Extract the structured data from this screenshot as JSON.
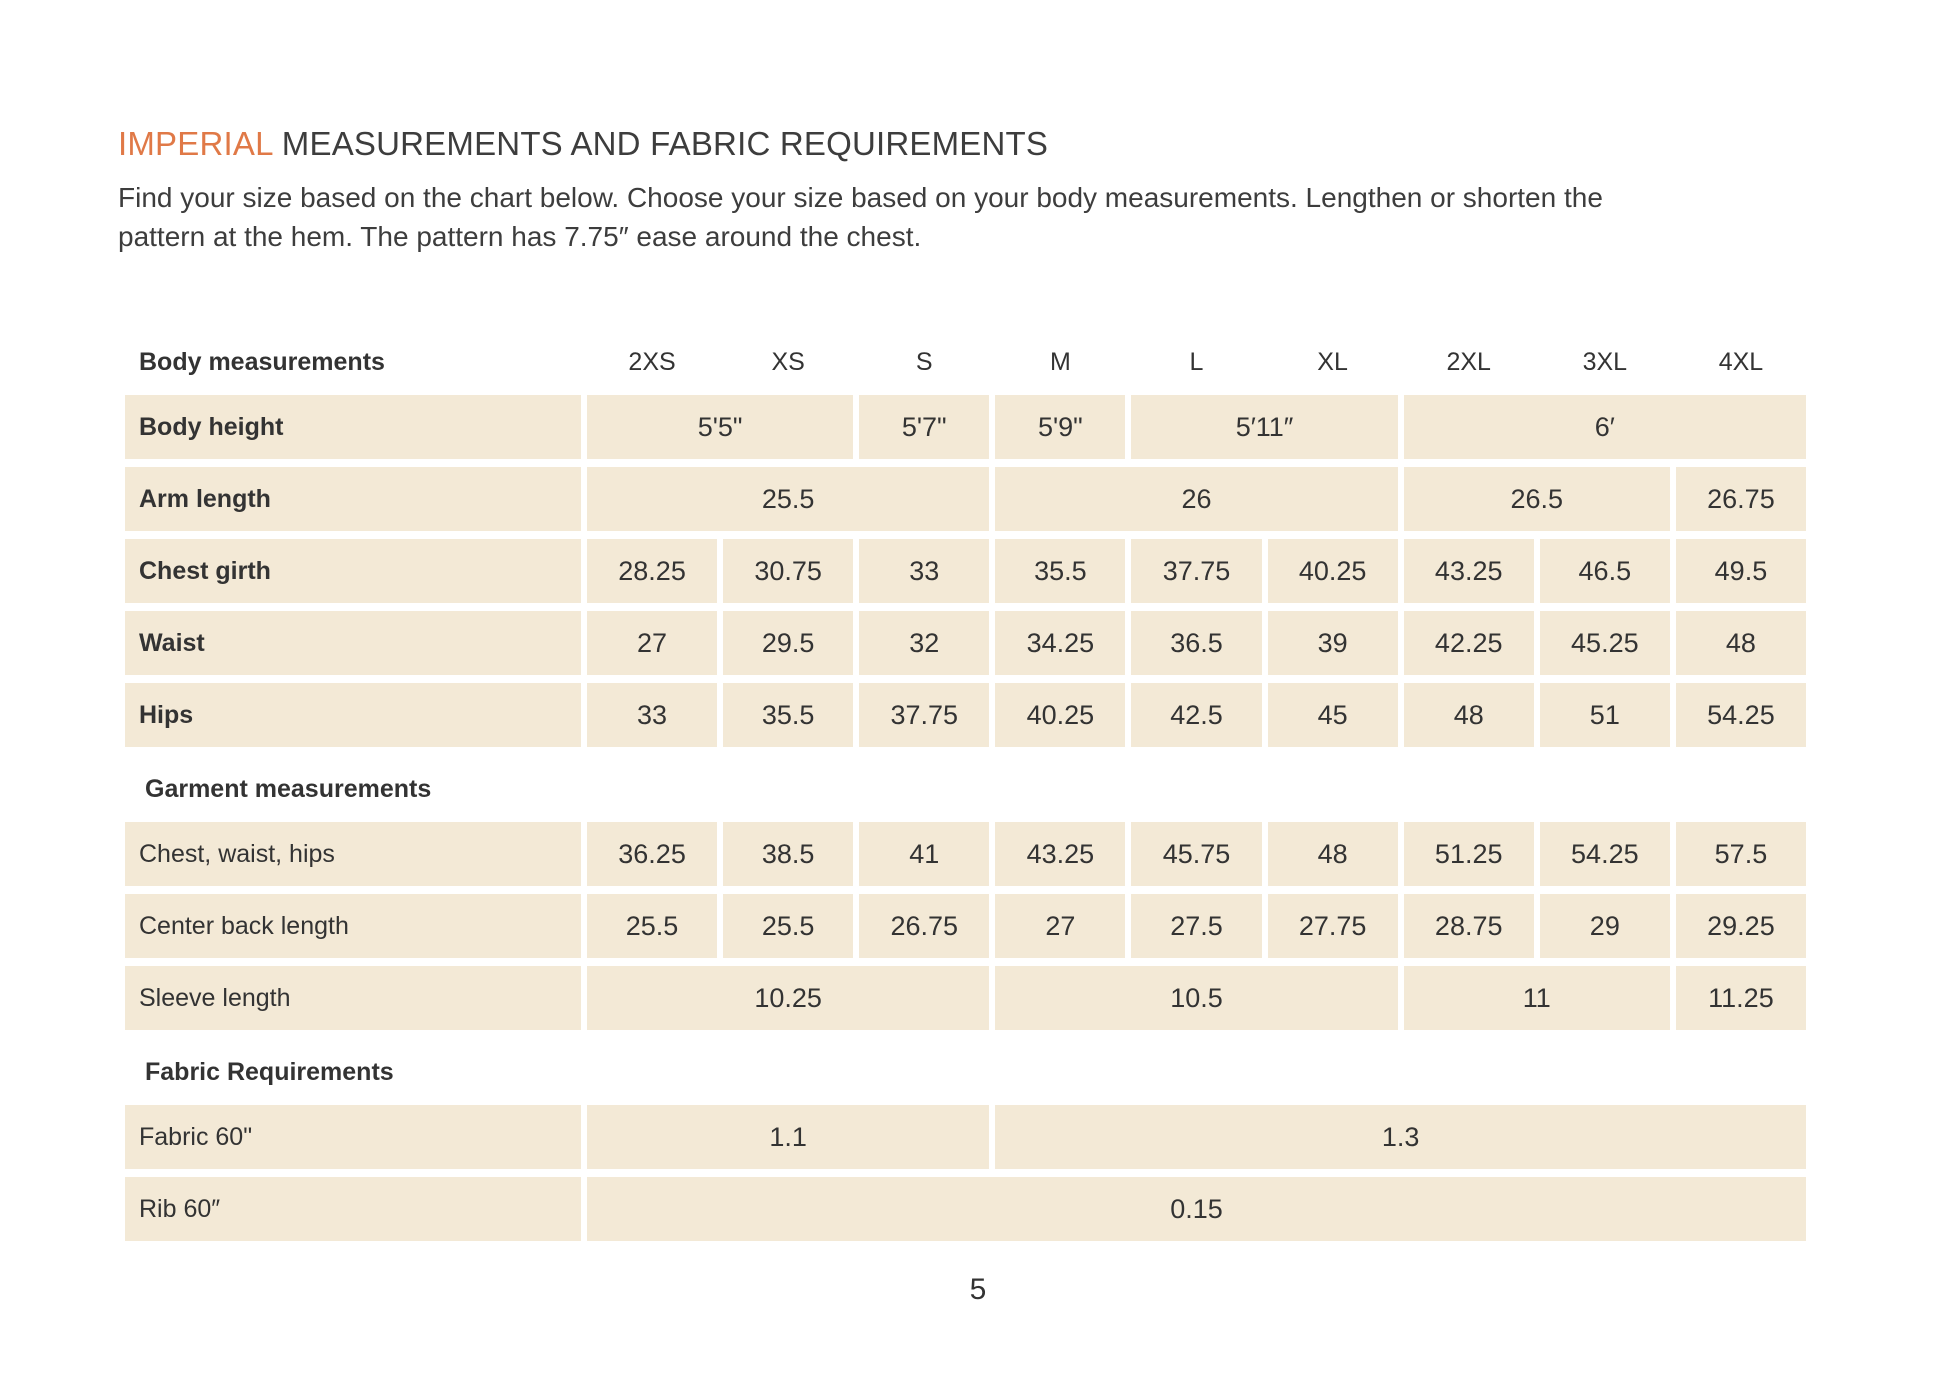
{
  "colors": {
    "accent_orange": "#e07947",
    "cell_beige": "#f3e9d6",
    "text": "#3a3a3a"
  },
  "header": {
    "title_highlight": "IMPERIAL",
    "title_rest": "MEASUREMENTS AND FABRIC REQUIREMENTS",
    "intro_line1": "Find your size based on the chart below. Choose your size based on your body measurements. Lengthen or shorten the",
    "intro_line2": "pattern at the hem. The pattern has 7.75″ ease around the chest."
  },
  "table": {
    "column_header_label": "Body measurements",
    "sizes": [
      "2XS",
      "XS",
      "S",
      "M",
      "L",
      "XL",
      "2XL",
      "3XL",
      "4XL"
    ],
    "body_rows": [
      {
        "label": "Body height",
        "cells": [
          "5'5\"",
          "5'7\"",
          "5'9\"",
          "5′11″",
          "6′"
        ]
      },
      {
        "label": "Arm length",
        "cells": [
          "25.5",
          "26",
          "26.5",
          "26.75"
        ]
      },
      {
        "label": "Chest girth",
        "cells": [
          "28.25",
          "30.75",
          "33",
          "35.5",
          "37.75",
          "40.25",
          "43.25",
          "46.5",
          "49.5"
        ]
      },
      {
        "label": "Waist",
        "cells": [
          "27",
          "29.5",
          "32",
          "34.25",
          "36.5",
          "39",
          "42.25",
          "45.25",
          "48"
        ]
      },
      {
        "label": "Hips",
        "cells": [
          "33",
          "35.5",
          "37.75",
          "40.25",
          "42.5",
          "45",
          "48",
          "51",
          "54.25"
        ]
      }
    ],
    "garment_section_title": "Garment measurements",
    "garment_rows": [
      {
        "label": "Chest, waist, hips",
        "cells": [
          "36.25",
          "38.5",
          "41",
          "43.25",
          "45.75",
          "48",
          "51.25",
          "54.25",
          "57.5"
        ]
      },
      {
        "label": "Center back length",
        "cells": [
          "25.5",
          "25.5",
          "26.75",
          "27",
          "27.5",
          "27.75",
          "28.75",
          "29",
          "29.25"
        ]
      },
      {
        "label": "Sleeve length",
        "cells": [
          "10.25",
          "10.5",
          "11",
          "11.25"
        ]
      }
    ],
    "fabric_section_title": "Fabric Requirements",
    "fabric_rows": [
      {
        "label": "Fabric 60\"",
        "cells": [
          "1.1",
          "1.3"
        ]
      },
      {
        "label": "Rib 60″",
        "cells": [
          "0.15"
        ]
      }
    ]
  },
  "footer": {
    "page_number": "5"
  }
}
